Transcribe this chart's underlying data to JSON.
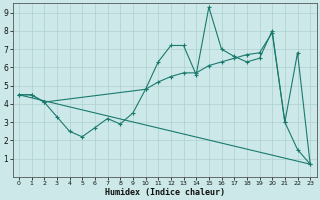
{
  "xlabel": "Humidex (Indice chaleur)",
  "line_color": "#1a7a6e",
  "bg_color": "#cce8e8",
  "grid_color": "#aed0d0",
  "xlim": [
    -0.5,
    23.5
  ],
  "ylim": [
    0,
    9.5
  ],
  "xticks": [
    0,
    1,
    2,
    3,
    4,
    5,
    6,
    7,
    8,
    9,
    10,
    11,
    12,
    13,
    14,
    15,
    16,
    17,
    18,
    19,
    20,
    21,
    22,
    23
  ],
  "yticks": [
    1,
    2,
    3,
    4,
    5,
    6,
    7,
    8,
    9
  ],
  "line1_x": [
    0,
    1,
    2,
    10,
    11,
    12,
    13,
    14,
    15,
    16,
    17,
    18,
    19,
    20,
    21,
    22,
    23
  ],
  "line1_y": [
    4.5,
    4.5,
    4.1,
    4.8,
    6.3,
    7.2,
    7.2,
    5.6,
    9.3,
    7.0,
    6.6,
    6.3,
    6.5,
    8.0,
    3.0,
    6.8,
    0.7
  ],
  "line2_x": [
    0,
    1,
    2,
    3,
    4,
    5,
    6,
    7,
    8,
    9,
    10,
    11,
    12,
    13,
    14,
    15,
    16,
    17,
    18,
    19,
    20,
    21,
    22,
    23
  ],
  "line2_y": [
    4.5,
    4.5,
    4.1,
    3.3,
    2.5,
    2.2,
    2.7,
    3.2,
    2.9,
    3.5,
    4.8,
    5.2,
    5.5,
    5.7,
    5.7,
    6.1,
    6.3,
    6.5,
    6.7,
    6.8,
    7.9,
    3.0,
    1.5,
    0.7
  ],
  "line3_x": [
    0,
    23
  ],
  "line3_y": [
    4.5,
    0.7
  ]
}
